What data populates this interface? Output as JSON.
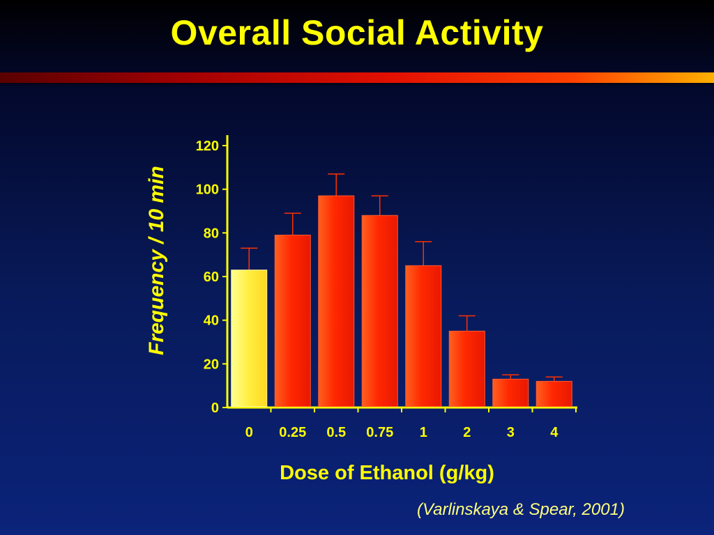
{
  "slide": {
    "title": "Overall Social Activity",
    "citation": "(Varlinskaya & Spear, 2001)"
  },
  "colors": {
    "title_text": "#ffff00",
    "background": "#0b237a",
    "control_bar": "#ffee44",
    "treatment_bar": "#ff3000",
    "error_bar": "#ff3000",
    "axis": "#ffff00"
  },
  "chart_data": {
    "type": "bar",
    "title": "",
    "xlabel": "Dose of Ethanol (g/kg)",
    "ylabel": "Frequency / 10 min",
    "categories": [
      "0",
      "0.25",
      "0.5",
      "0.75",
      "1",
      "2",
      "3",
      "4"
    ],
    "values": [
      63,
      79,
      97,
      88,
      65,
      35,
      13,
      12
    ],
    "error_upper": [
      10,
      10,
      10,
      9,
      11,
      7,
      2,
      2
    ],
    "ylim": [
      0,
      120
    ],
    "yticks": [
      0,
      20,
      40,
      60,
      80,
      100,
      120
    ],
    "bar_colors": [
      "#ffee44",
      "#ff3000",
      "#ff3000",
      "#ff3000",
      "#ff3000",
      "#ff3000",
      "#ff3000",
      "#ff3000"
    ],
    "grid": false,
    "legend": "none"
  }
}
